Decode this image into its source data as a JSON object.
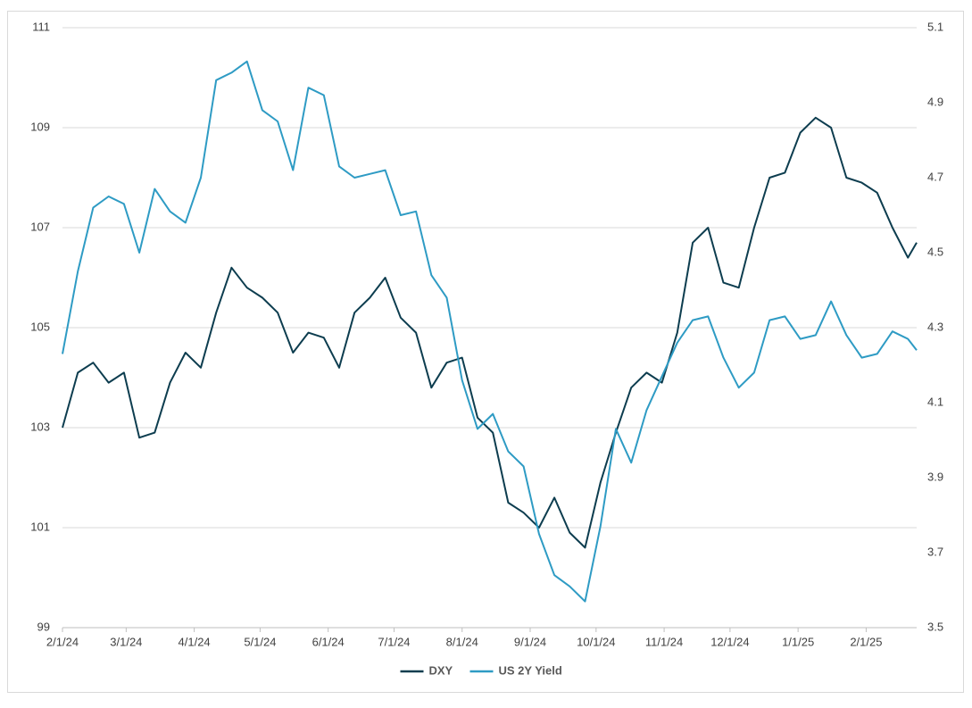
{
  "chart_data": {
    "type": "line",
    "x": [
      "2024-02-01",
      "2024-02-08",
      "2024-02-15",
      "2024-02-22",
      "2024-02-29",
      "2024-03-07",
      "2024-03-14",
      "2024-03-21",
      "2024-03-28",
      "2024-04-04",
      "2024-04-11",
      "2024-04-18",
      "2024-04-25",
      "2024-05-02",
      "2024-05-09",
      "2024-05-16",
      "2024-05-23",
      "2024-05-30",
      "2024-06-06",
      "2024-06-13",
      "2024-06-20",
      "2024-06-27",
      "2024-07-04",
      "2024-07-11",
      "2024-07-18",
      "2024-07-25",
      "2024-08-01",
      "2024-08-08",
      "2024-08-15",
      "2024-08-22",
      "2024-08-29",
      "2024-09-05",
      "2024-09-12",
      "2024-09-19",
      "2024-09-26",
      "2024-10-03",
      "2024-10-10",
      "2024-10-17",
      "2024-10-24",
      "2024-10-31",
      "2024-11-07",
      "2024-11-14",
      "2024-11-21",
      "2024-11-28",
      "2024-12-05",
      "2024-12-12",
      "2024-12-19",
      "2024-12-26",
      "2025-01-02",
      "2025-01-09",
      "2025-01-16",
      "2025-01-23",
      "2025-01-30",
      "2025-02-06",
      "2025-02-13",
      "2025-02-20",
      "2025-02-24"
    ],
    "series": [
      {
        "name": "DXY",
        "color": "#0d3d4f",
        "axis": "y",
        "values": [
          103.0,
          104.1,
          104.3,
          103.9,
          104.1,
          102.8,
          102.9,
          103.9,
          104.5,
          104.2,
          105.3,
          106.2,
          105.8,
          105.6,
          105.3,
          104.5,
          104.9,
          104.8,
          104.2,
          105.3,
          105.6,
          106.0,
          105.2,
          104.9,
          103.8,
          104.3,
          104.4,
          103.2,
          102.9,
          101.5,
          101.3,
          101.0,
          101.6,
          100.9,
          100.6,
          101.9,
          102.9,
          103.8,
          104.1,
          103.9,
          104.9,
          106.7,
          107.0,
          105.9,
          105.8,
          107.0,
          108.0,
          108.1,
          108.9,
          109.2,
          109.0,
          108.0,
          107.9,
          107.7,
          107.0,
          106.4,
          106.7
        ]
      },
      {
        "name": "US 2Y Yield",
        "color": "#2e9bc4",
        "axis": "y2",
        "values": [
          4.23,
          4.45,
          4.62,
          4.65,
          4.63,
          4.5,
          4.67,
          4.61,
          4.58,
          4.7,
          4.96,
          4.98,
          5.01,
          4.88,
          4.85,
          4.72,
          4.94,
          4.92,
          4.73,
          4.7,
          4.71,
          4.72,
          4.6,
          4.61,
          4.44,
          4.38,
          4.16,
          4.03,
          4.07,
          3.97,
          3.93,
          3.75,
          3.64,
          3.61,
          3.57,
          3.77,
          4.03,
          3.94,
          4.08,
          4.17,
          4.26,
          4.32,
          4.33,
          4.22,
          4.14,
          4.18,
          4.32,
          4.33,
          4.27,
          4.28,
          4.37,
          4.28,
          4.22,
          4.23,
          4.29,
          4.27,
          4.24
        ]
      }
    ],
    "xlim": [
      "2024-02-01",
      "2025-02-24"
    ],
    "xticks": [
      {
        "value": "2024-02-01",
        "label": "2/1/24"
      },
      {
        "value": "2024-03-01",
        "label": "3/1/24"
      },
      {
        "value": "2024-04-01",
        "label": "4/1/24"
      },
      {
        "value": "2024-05-01",
        "label": "5/1/24"
      },
      {
        "value": "2024-06-01",
        "label": "6/1/24"
      },
      {
        "value": "2024-07-01",
        "label": "7/1/24"
      },
      {
        "value": "2024-08-01",
        "label": "8/1/24"
      },
      {
        "value": "2024-09-01",
        "label": "9/1/24"
      },
      {
        "value": "2024-10-01",
        "label": "10/1/24"
      },
      {
        "value": "2024-11-01",
        "label": "11/1/24"
      },
      {
        "value": "2024-12-01",
        "label": "12/1/24"
      },
      {
        "value": "2025-01-01",
        "label": "1/1/25"
      },
      {
        "value": "2025-02-01",
        "label": "2/1/25"
      }
    ],
    "ylim": [
      99,
      111
    ],
    "yticks": [
      99,
      101,
      103,
      105,
      107,
      109,
      111
    ],
    "y2lim": [
      3.5,
      5.1
    ],
    "y2ticks": [
      3.5,
      3.7,
      3.9,
      4.1,
      4.3,
      4.5,
      4.7,
      4.9,
      5.1
    ],
    "grid": true,
    "legend": "bottom"
  }
}
